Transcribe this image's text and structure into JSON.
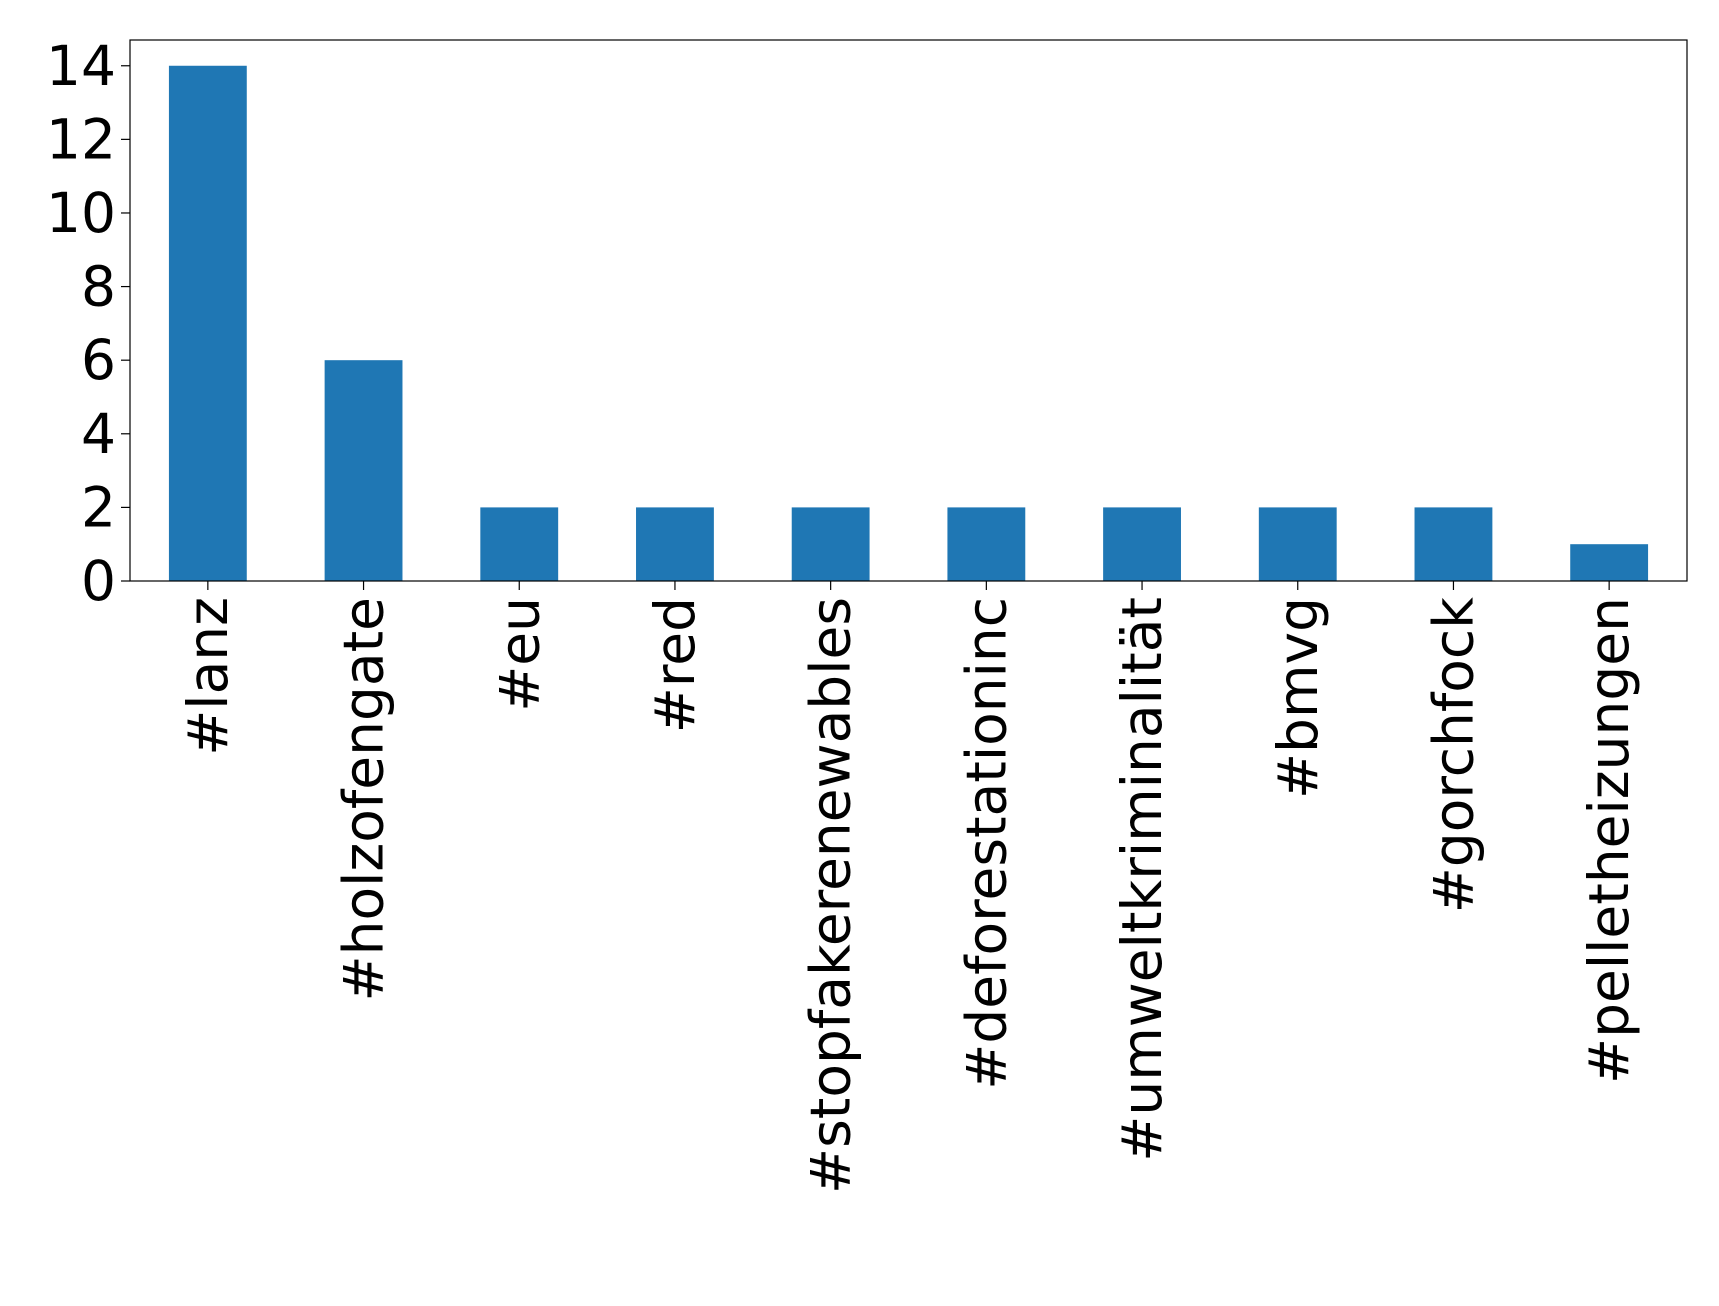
{
  "chart_data": {
    "type": "bar",
    "categories": [
      "#lanz",
      "#holzofengate",
      "#eu",
      "#red",
      "#stopfakerenewables",
      "#deforestationinc",
      "#umweltkriminalität",
      "#bmvg",
      "#gorchfock",
      "#pelletheizungen"
    ],
    "values": [
      14,
      6,
      2,
      2,
      2,
      2,
      2,
      2,
      2,
      1
    ],
    "color": "#1f77b4",
    "ylim": [
      0,
      14.7
    ],
    "yticks": [
      0,
      2,
      4,
      6,
      8,
      10,
      12,
      14
    ],
    "grid": false
  }
}
